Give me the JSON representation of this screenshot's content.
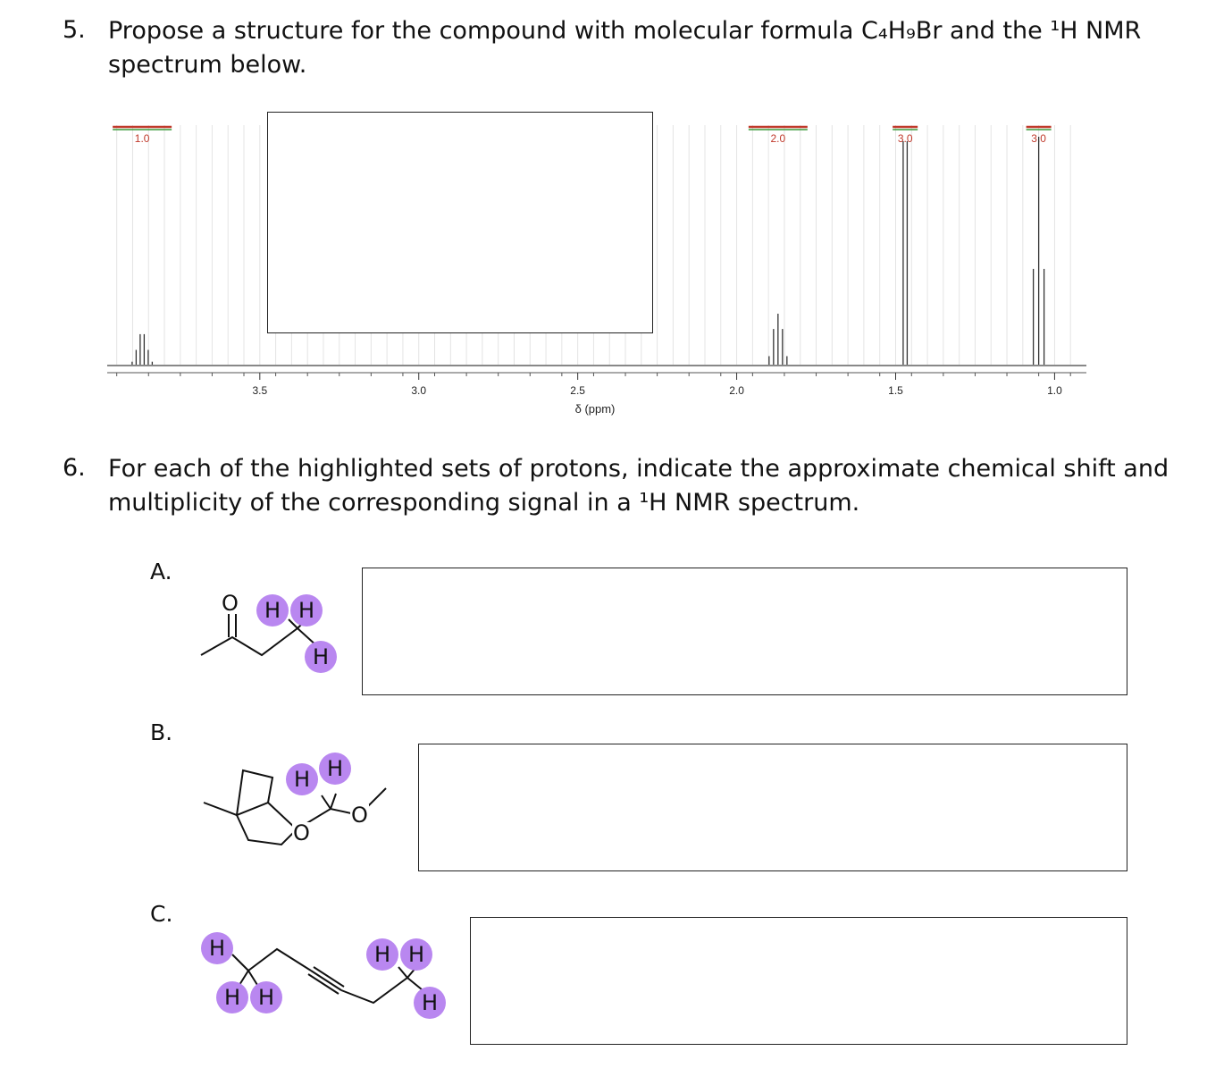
{
  "question5": {
    "number": "5.",
    "line1": "Propose a structure for the compound with molecular formula C₄H₉Br and the ¹H NMR",
    "line2": "spectrum below."
  },
  "spectrum": {
    "axis_label": "δ (ppm)",
    "ticks": [
      "3.5",
      "3.0",
      "2.5",
      "2.0",
      "1.5",
      "1.0"
    ],
    "integrations": [
      "1.0",
      "2.0",
      "3.0",
      "3.0"
    ]
  },
  "chart_data": {
    "type": "line",
    "xlabel": "δ (ppm)",
    "xlim": [
      3.98,
      0.9
    ],
    "x_reversed": true,
    "peaks": [
      {
        "shift": 3.87,
        "integration": "1.0",
        "multiplicity": "sextet"
      },
      {
        "shift": 1.87,
        "integration": "2.0",
        "multiplicity": "quintet"
      },
      {
        "shift": 1.47,
        "integration": "3.0",
        "multiplicity": "doublet"
      },
      {
        "shift": 1.05,
        "integration": "3.0",
        "multiplicity": "triplet"
      }
    ]
  },
  "question6": {
    "number": "6.",
    "line1": "For each of the highlighted sets of protons, indicate the approximate chemical shift and",
    "line2": "multiplicity of the corresponding signal in a ¹H NMR spectrum."
  },
  "parts": {
    "a": {
      "label": "A."
    },
    "b": {
      "label": "B."
    },
    "c": {
      "label": "C."
    }
  },
  "atoms": {
    "oxygen": "O",
    "hydrogen": "H"
  }
}
